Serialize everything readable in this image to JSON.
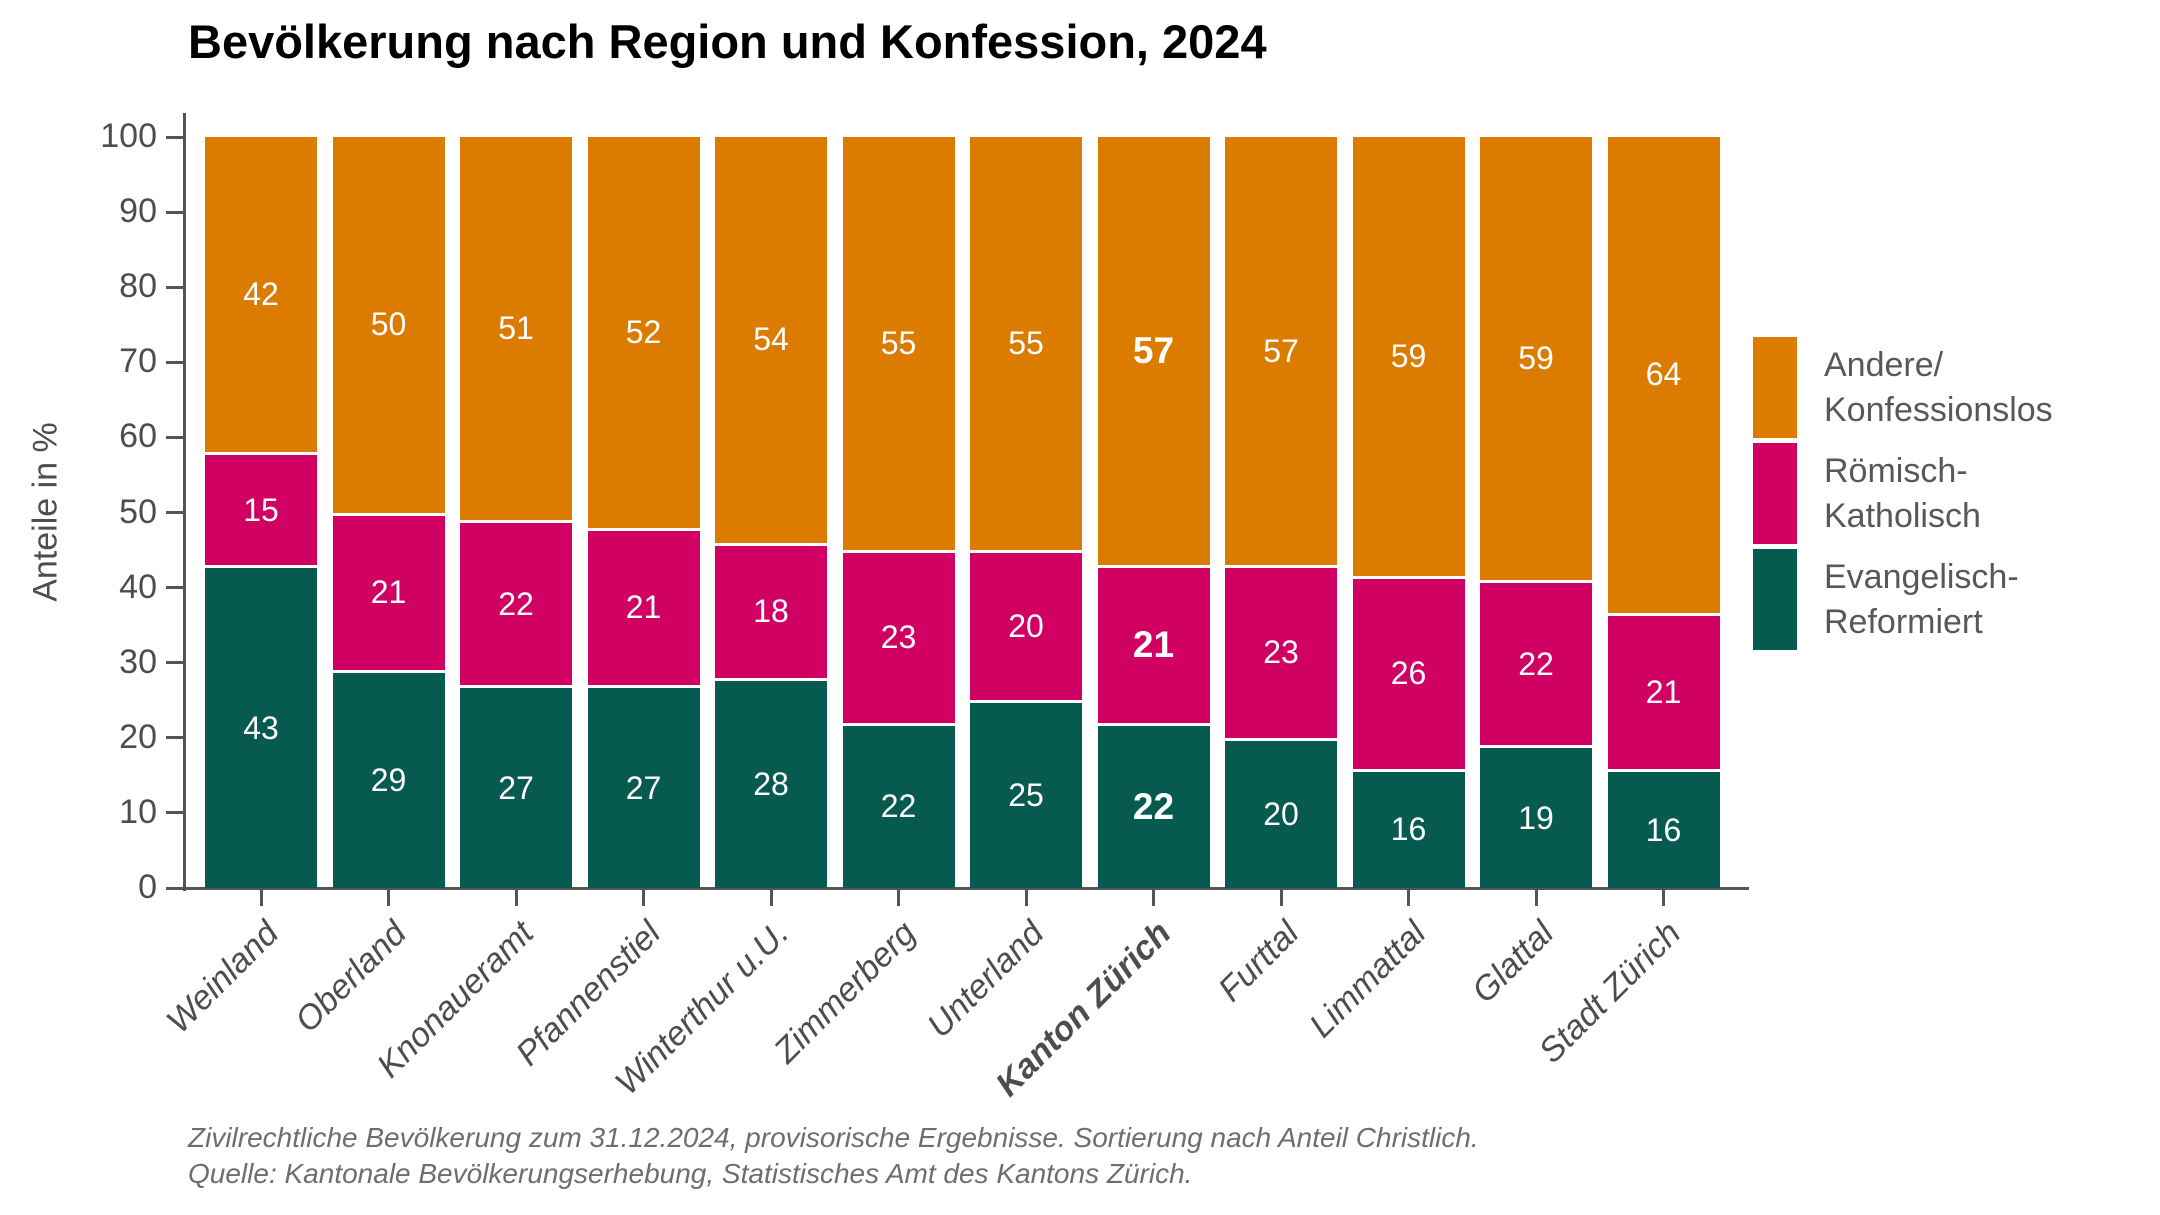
{
  "title": "Bevölkerung nach Region und Konfession, 2024",
  "chart_data": {
    "type": "bar",
    "stacked": true,
    "title": "Bevölkerung nach Region und Konfession, 2024",
    "xlabel": "",
    "ylabel": "Anteile in %",
    "ylim": [
      0,
      100
    ],
    "yticks": [
      0,
      10,
      20,
      30,
      40,
      50,
      60,
      70,
      80,
      90,
      100
    ],
    "grid": false,
    "legend_position": "right",
    "categories": [
      "Weinland",
      "Oberland",
      "Knonaueramt",
      "Pfannenstiel",
      "Winterthur u.U.",
      "Zimmerberg",
      "Unterland",
      "Kanton Zürich",
      "Furttal",
      "Limmattal",
      "Glattal",
      "Stadt Zürich"
    ],
    "emphasized_category": "Kanton Zürich",
    "series": [
      {
        "name": "Evangelisch-Reformiert",
        "color": "#065A50",
        "values": [
          43,
          29,
          27,
          27,
          28,
          22,
          25,
          22,
          20,
          16,
          19,
          16
        ]
      },
      {
        "name": "Römisch-Katholisch",
        "color": "#D10063",
        "values": [
          15,
          21,
          22,
          21,
          18,
          23,
          20,
          21,
          23,
          26,
          22,
          21
        ]
      },
      {
        "name": "Andere/Konfessionslos",
        "color": "#DB7C00",
        "values": [
          42,
          50,
          51,
          52,
          54,
          55,
          55,
          57,
          57,
          59,
          59,
          64
        ]
      }
    ]
  },
  "legend": {
    "items": [
      {
        "label_lines": [
          "Andere/",
          "Konfessionslos"
        ],
        "color": "#DB7C00"
      },
      {
        "label_lines": [
          "Römisch-",
          "Katholisch"
        ],
        "color": "#D10063"
      },
      {
        "label_lines": [
          "Evangelisch-",
          "Reformiert"
        ],
        "color": "#065A50"
      }
    ]
  },
  "footnotes": {
    "line1": "Zivilrechtliche Bevölkerung zum 31.12.2024, provisorische Ergebnisse. Sortierung nach Anteil Christlich.",
    "line2": "Quelle: Kantonale Bevölkerungserhebung, Statistisches Amt des Kantons Zürich."
  },
  "colors": {
    "background": "#FFFFFF",
    "axis": "#555555",
    "tick_label": "#4D4D4D",
    "legend_text": "#58585A",
    "footnote": "#6E6E6E",
    "bar_value_label": "#FFFFFF"
  }
}
